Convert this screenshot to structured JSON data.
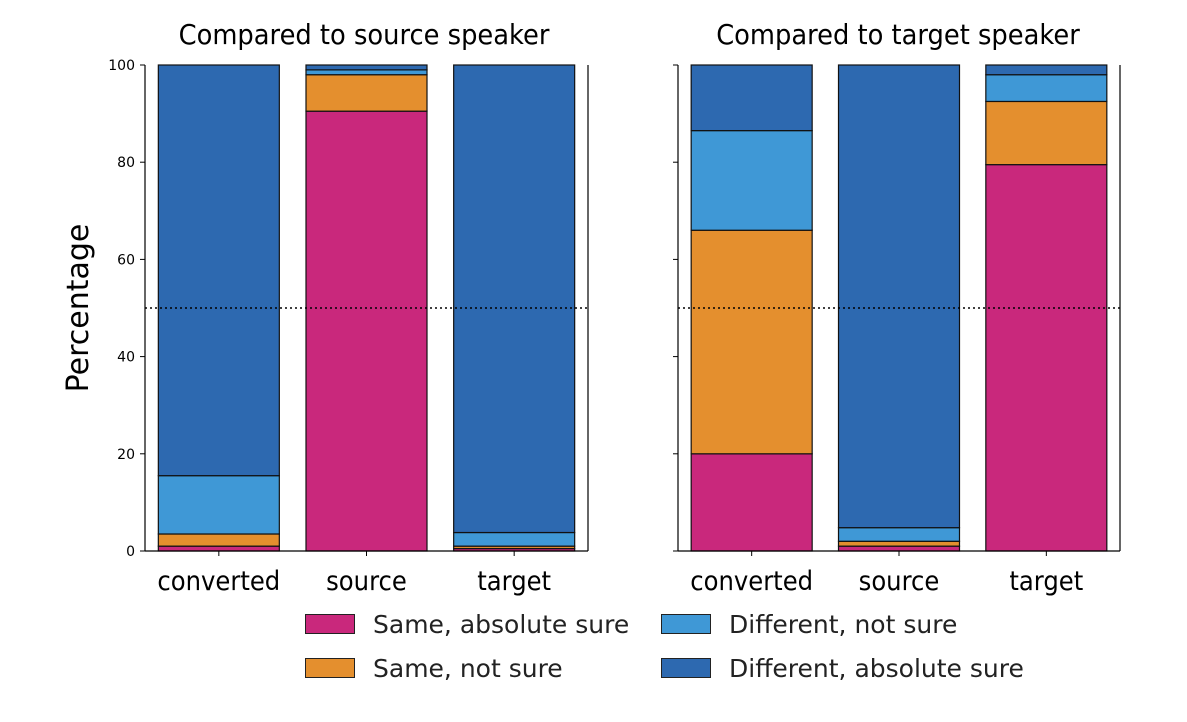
{
  "chart_data": [
    {
      "type": "bar",
      "stacked": true,
      "title": "Compared to source speaker",
      "ylabel": "Percentage",
      "xlabel": "",
      "ylim": [
        0,
        100
      ],
      "yticks": [
        0,
        20,
        40,
        60,
        80,
        100
      ],
      "reference_line": 50,
      "categories": [
        "converted",
        "source",
        "target"
      ],
      "series": [
        {
          "name": "Same, absolute sure",
          "values": [
            1.0,
            90.5,
            0.5
          ]
        },
        {
          "name": "Same, not sure",
          "values": [
            2.5,
            7.5,
            0.5
          ]
        },
        {
          "name": "Different, not sure",
          "values": [
            12.0,
            1.0,
            2.8
          ]
        },
        {
          "name": "Different, absolute sure",
          "values": [
            84.5,
            1.0,
            96.2
          ]
        }
      ]
    },
    {
      "type": "bar",
      "stacked": true,
      "title": "Compared to target speaker",
      "ylabel": "",
      "xlabel": "",
      "ylim": [
        0,
        100
      ],
      "yticks": [
        0,
        20,
        40,
        60,
        80,
        100
      ],
      "reference_line": 50,
      "categories": [
        "converted",
        "source",
        "target"
      ],
      "series": [
        {
          "name": "Same, absolute sure",
          "values": [
            20.0,
            1.0,
            79.5
          ]
        },
        {
          "name": "Same, not sure",
          "values": [
            46.0,
            1.0,
            13.0
          ]
        },
        {
          "name": "Different, not sure",
          "values": [
            20.5,
            2.8,
            5.5
          ]
        },
        {
          "name": "Different, absolute sure",
          "values": [
            13.5,
            95.2,
            2.0
          ]
        }
      ]
    }
  ],
  "series_colors": [
    "#c9287c",
    "#e48f2e",
    "#3f98d6",
    "#2d69b0"
  ],
  "legend": {
    "placement": "bottom-center",
    "items": [
      {
        "label": "Same, absolute sure",
        "color": "#c9287c"
      },
      {
        "label": "Different, not sure",
        "color": "#3f98d6"
      },
      {
        "label": "Same, not sure",
        "color": "#e48f2e"
      },
      {
        "label": "Different, absolute sure",
        "color": "#2d69b0"
      }
    ]
  }
}
